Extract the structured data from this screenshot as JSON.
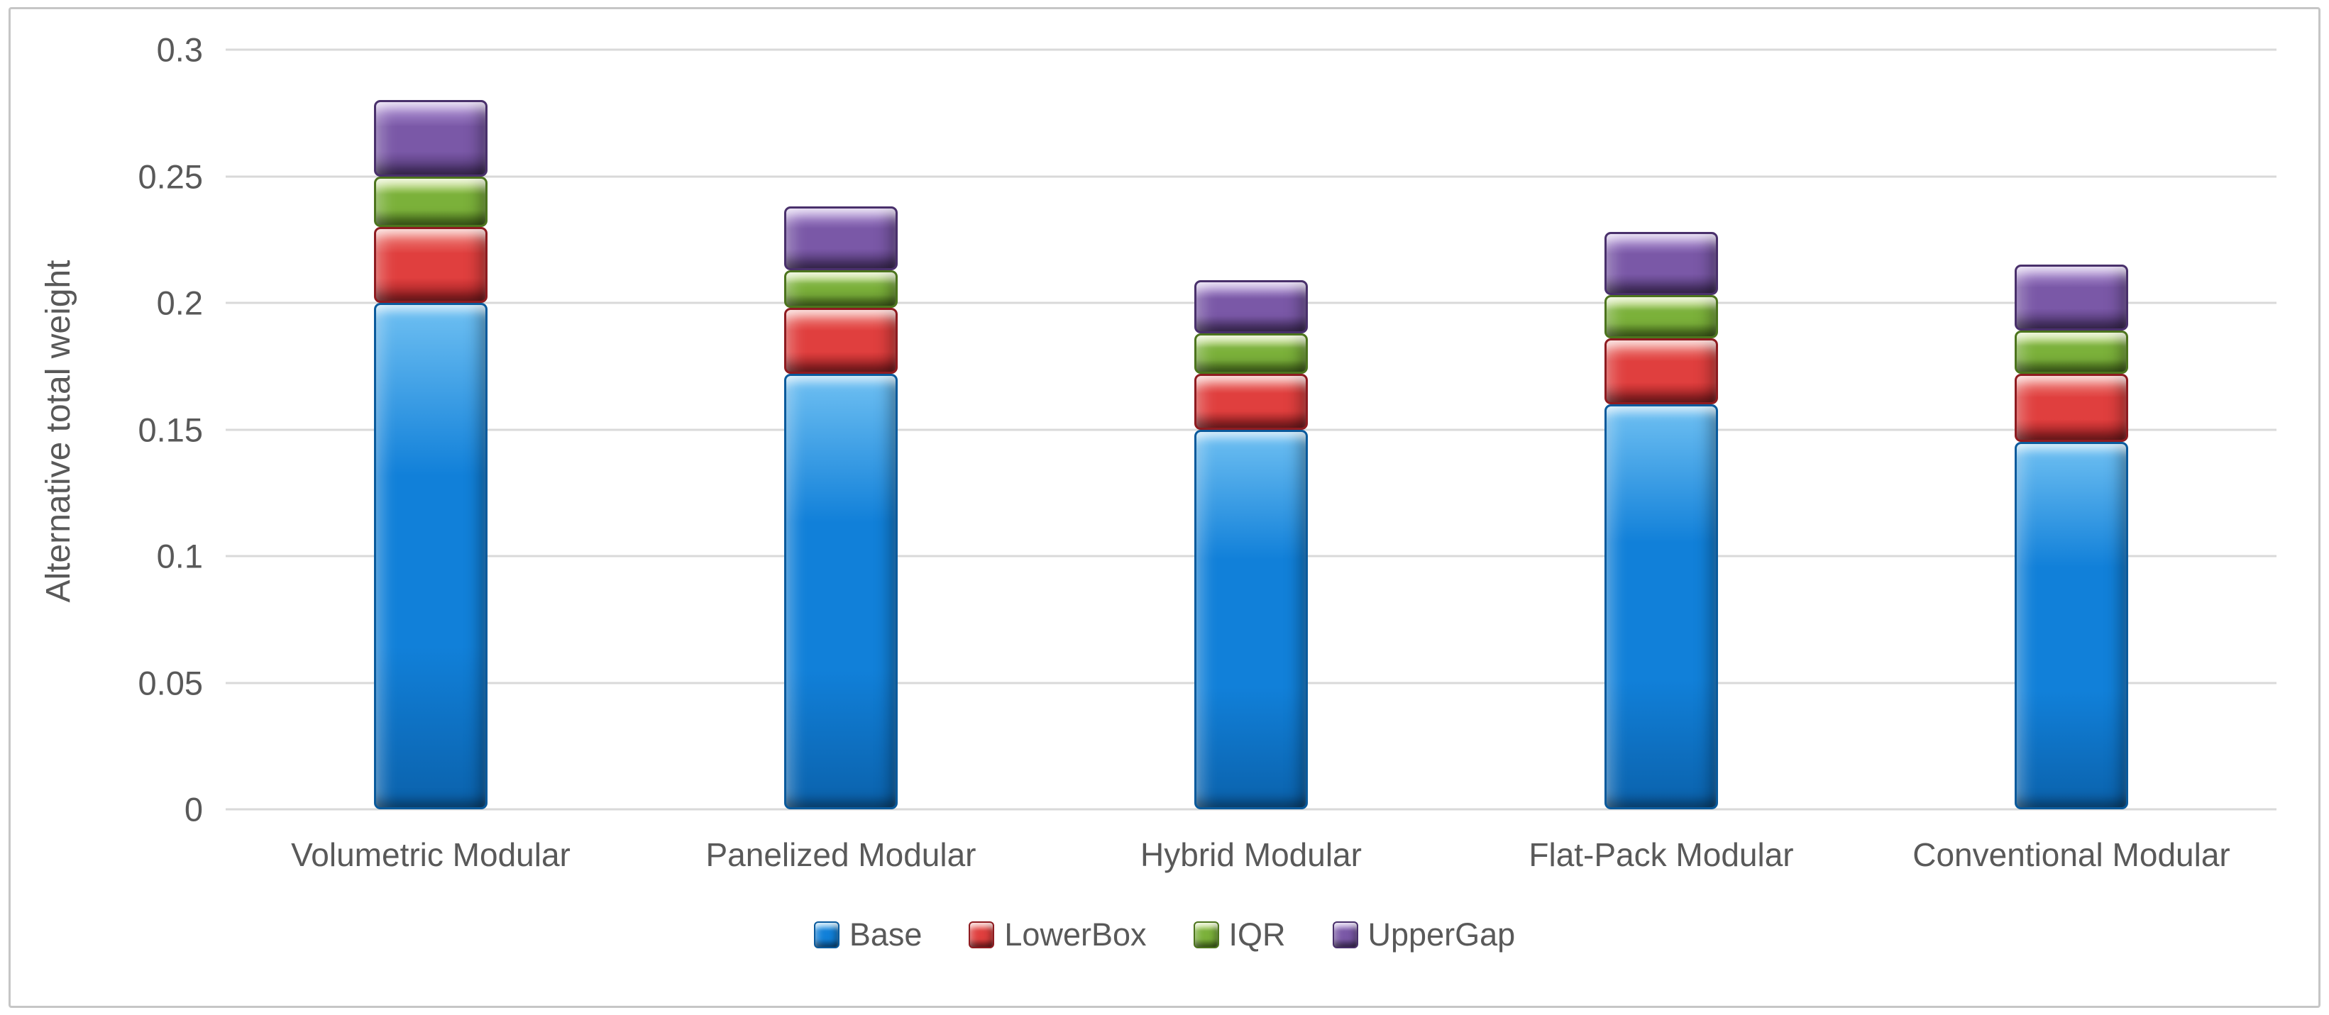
{
  "chart": {
    "y_axis_title": "Alternative total weight",
    "ticks": [
      "0.3",
      "0.25",
      "0.2",
      "0.15",
      "0.1",
      "0.05",
      "0"
    ],
    "colors": {
      "base": "#1180d9",
      "lowerbox": "#e03f3e",
      "iqr": "#7bb13a",
      "uppergap": "#7a58a7",
      "gridline": "#d9d9d9",
      "text": "#595959",
      "frame_border": "#c6c6c6"
    }
  },
  "chart_data": {
    "type": "bar",
    "stacked": true,
    "title": "",
    "xlabel": "",
    "ylabel": "Alternative total weight",
    "ylim": [
      0,
      0.3
    ],
    "ytick_step": 0.05,
    "grid": true,
    "legend_position": "bottom",
    "categories": [
      "Volumetric Modular",
      "Panelized Modular",
      "Hybrid Modular",
      "Flat-Pack Modular",
      "Conventional Modular"
    ],
    "series": [
      {
        "name": "Base",
        "color": "#1180d9",
        "values": [
          0.2,
          0.172,
          0.15,
          0.16,
          0.145
        ]
      },
      {
        "name": "LowerBox",
        "color": "#e03f3e",
        "values": [
          0.03,
          0.026,
          0.022,
          0.026,
          0.027
        ]
      },
      {
        "name": "IQR",
        "color": "#7bb13a",
        "values": [
          0.02,
          0.015,
          0.016,
          0.017,
          0.017
        ]
      },
      {
        "name": "UpperGap",
        "color": "#7a58a7",
        "values": [
          0.03,
          0.025,
          0.021,
          0.025,
          0.026
        ]
      }
    ],
    "stack_totals": [
      0.28,
      0.238,
      0.209,
      0.228,
      0.215
    ]
  }
}
